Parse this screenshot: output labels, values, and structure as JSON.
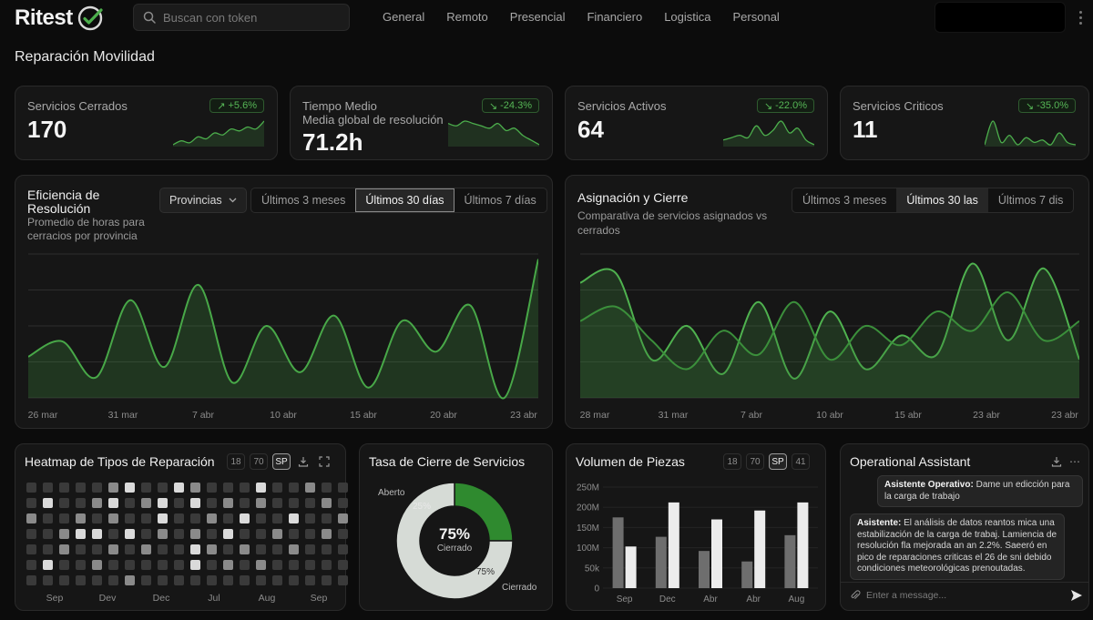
{
  "app": {
    "logo_text": "Ritest",
    "search_placeholder": "Buscan con token",
    "nav_tabs": [
      "General",
      "Remoto",
      "Presencial",
      "Financiero",
      "Logistica",
      "Personal"
    ],
    "active_tab": 0,
    "page_title": "Reparación Movilidad"
  },
  "colors": {
    "accent_green": "#4cae4c",
    "bg": "#0c0c0c",
    "card": "#161616"
  },
  "kpis": [
    {
      "label": "Servicios Cerrados",
      "sub": "",
      "value": "170",
      "badge": "+5.6%",
      "trend": "up",
      "spark": [
        10,
        12,
        11,
        14,
        13,
        16,
        15,
        18,
        17,
        19,
        18,
        22
      ]
    },
    {
      "label": "Tiempo Medio",
      "sub": "Media global de resolución",
      "value": "71.2h",
      "badge": "-24.3%",
      "trend": "down",
      "spark": [
        18,
        17,
        19,
        18,
        17,
        16,
        18,
        15,
        16,
        13,
        11,
        9
      ]
    },
    {
      "label": "Servicios Activos",
      "sub": "",
      "value": "64",
      "badge": "-22.0%",
      "trend": "down",
      "spark": [
        12,
        13,
        14,
        13,
        18,
        14,
        16,
        20,
        15,
        17,
        12,
        10
      ]
    },
    {
      "label": "Servicios Criticos",
      "sub": "",
      "value": "11",
      "badge": "-35.0%",
      "trend": "down",
      "spark": [
        12,
        22,
        13,
        16,
        12,
        15,
        13,
        14,
        12,
        17,
        13,
        12
      ]
    }
  ],
  "efficiency": {
    "title_line1": "Eficiencia de",
    "title_line2": "Resolución",
    "subtitle_line1": "Promedio de horas para",
    "subtitle_line2": "cerracios por provincia",
    "select_label": "Provincias",
    "ranges": [
      "Últimos 3 meses",
      "Últimos 30 días",
      "Últimos 7 días"
    ],
    "active_range": 1
  },
  "assignment": {
    "title": "Asignación y Cierre",
    "subtitle_line1": "Comparativa de servicios asignados vs",
    "subtitle_line2": "cerrados",
    "ranges": [
      "Últimos 3 meses",
      "Últimos 30 las",
      "Últimos 7 dis"
    ],
    "active_range": 1
  },
  "heatmap": {
    "title": "Heatmap de Tipos de Reparación",
    "chips": [
      "18",
      "70",
      "SP"
    ],
    "active_chip": 2,
    "month_labels": [
      "Sep",
      "Dev",
      "Dec",
      "Jul",
      "Aug",
      "Sep"
    ]
  },
  "closure": {
    "title": "Tasa de Cierre de Servicios",
    "center_value": "75%",
    "center_label": "Cierrado",
    "open_pct_label": "25%",
    "closed_pct_label": "75%",
    "legend_open": "Aberto",
    "legend_closed": "Cierrado"
  },
  "parts": {
    "title": "Volumen de Piezas",
    "chips": [
      "18",
      "70",
      "SP",
      "41"
    ],
    "active_chip": 2
  },
  "assistant": {
    "title": "Operational Assistant",
    "msg1_author": "Asistente Operativo:",
    "msg1_text": "Dame un edicción para la carga de trabajo",
    "msg2_author": "Asistente:",
    "msg2_text": "El análisis de datos reantos mica una estabilización de la carga de trabaj. Lamiencia de resolución fla mejorada an an 2.2%. Saeeró en pico de reparaciones criticas el 26 de sni debido condiciones meteorológicas prenoutadas.",
    "input_placeholder": "Enter a message..."
  },
  "chart_data": [
    {
      "type": "area",
      "title": "Eficiencia de Resolución",
      "x": [
        "26 mar",
        "28 mar",
        "30 mar",
        "1 abr",
        "3 abr",
        "5 abr",
        "7 abr",
        "9 abr",
        "11 abr",
        "13 abr",
        "15 abr",
        "17 abr",
        "19 abr",
        "21 abr",
        "23 abr",
        "25 abr"
      ],
      "tick_labels": [
        "26 mar",
        "31 mar",
        "7 abr",
        "10 abr",
        "15 abr",
        "20 abr",
        "23 abr"
      ],
      "series": [
        {
          "values": [
            8,
            11,
            4,
            19,
            6,
            22,
            3,
            14,
            5,
            16,
            2,
            15,
            9,
            18,
            0,
            27
          ]
        }
      ],
      "grid": true
    },
    {
      "type": "area",
      "title": "Asignación y Cierre",
      "x": [
        "28 mar",
        "30 mar",
        "1 abr",
        "3 abr",
        "5 abr",
        "7 abr",
        "9 abr",
        "11 abr",
        "13 abr",
        "15 abr",
        "17 abr",
        "19 abr",
        "21 abr",
        "23 abr",
        "25 abr"
      ],
      "tick_labels": [
        "28 mar",
        "31 mar",
        "7 abr",
        "10 abr",
        "15 abr",
        "23 abr",
        "23 abr"
      ],
      "series": [
        {
          "values": [
            24,
            26,
            8,
            15,
            5,
            20,
            4,
            18,
            6,
            13,
            9,
            28,
            12,
            27,
            8
          ]
        },
        {
          "values": [
            16,
            19,
            12,
            6,
            14,
            9,
            20,
            8,
            15,
            11,
            18,
            14,
            22,
            12,
            16
          ]
        }
      ],
      "grid": true
    },
    {
      "type": "heatmap",
      "title": "Heatmap de Tipos de Reparación",
      "x_labels": [
        "Sep",
        "Dev",
        "Dec",
        "Jul",
        "Aug",
        "Sep"
      ],
      "rows": 7,
      "columns": 20,
      "levels": [
        [
          0,
          0,
          0,
          0,
          0,
          1,
          2,
          0,
          0,
          2,
          1,
          0,
          0,
          0,
          2,
          0,
          0,
          1,
          0,
          0
        ],
        [
          0,
          2,
          0,
          0,
          1,
          2,
          0,
          1,
          2,
          0,
          2,
          0,
          1,
          0,
          1,
          0,
          0,
          0,
          1,
          0
        ],
        [
          1,
          0,
          0,
          1,
          0,
          1,
          0,
          0,
          2,
          0,
          0,
          1,
          0,
          2,
          0,
          0,
          2,
          0,
          0,
          1
        ],
        [
          0,
          0,
          1,
          2,
          2,
          0,
          2,
          0,
          1,
          0,
          1,
          0,
          2,
          0,
          0,
          1,
          0,
          0,
          1,
          0
        ],
        [
          0,
          0,
          1,
          0,
          0,
          1,
          0,
          1,
          0,
          0,
          2,
          1,
          0,
          1,
          0,
          0,
          1,
          0,
          0,
          0
        ],
        [
          0,
          2,
          0,
          0,
          1,
          0,
          0,
          0,
          0,
          0,
          2,
          0,
          1,
          0,
          1,
          0,
          0,
          0,
          0,
          0
        ],
        [
          0,
          0,
          0,
          0,
          0,
          0,
          1,
          0,
          0,
          0,
          0,
          0,
          0,
          0,
          0,
          0,
          0,
          0,
          0,
          0
        ]
      ]
    },
    {
      "type": "pie",
      "title": "Tasa de Cierre de Servicios",
      "labels": [
        "Aberto",
        "Cierrado"
      ],
      "values": [
        25,
        75
      ]
    },
    {
      "type": "bar",
      "title": "Volumen de Piezas",
      "categories": [
        "Sep",
        "Dec",
        "Abr",
        "Abr",
        "Aug"
      ],
      "y_tick_labels": [
        "250M",
        "200M",
        "150M",
        "100M",
        "50k",
        "0"
      ],
      "ylim": [
        0,
        250
      ],
      "series": [
        {
          "values": [
            175,
            127,
            92,
            66,
            131
          ]
        },
        {
          "values": [
            103,
            212,
            170,
            192,
            212
          ]
        }
      ]
    }
  ]
}
